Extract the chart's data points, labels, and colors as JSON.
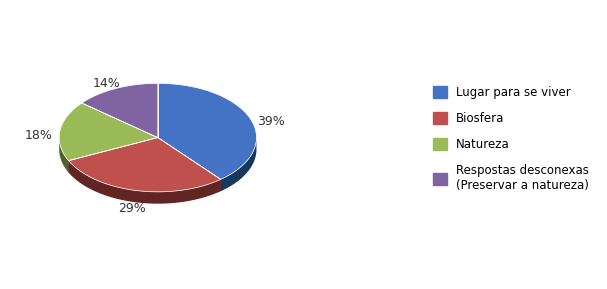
{
  "labels": [
    "Lugar para se viver",
    "Biosfera",
    "Natureza",
    "Respostas desconexas\n(Preservar a natureza)"
  ],
  "values": [
    39,
    29,
    18,
    14
  ],
  "colors_top": [
    "#4472C4",
    "#C0504D",
    "#9BBB59",
    "#8064A2"
  ],
  "colors_side": [
    "#17375E",
    "#632523",
    "#4F6228",
    "#3F3151"
  ],
  "pct_labels": [
    "39%",
    "29%",
    "18%",
    "14%"
  ],
  "startangle": 90,
  "background_color": "#FFFFFF",
  "legend_labels": [
    "Lugar para se viver",
    "Biosfera",
    "Natureza",
    "Respostas desconexas\n(Preservar a natureza)"
  ],
  "legend_colors": [
    "#4472C4",
    "#C0504D",
    "#9BBB59",
    "#8064A2"
  ],
  "depth": 0.12
}
